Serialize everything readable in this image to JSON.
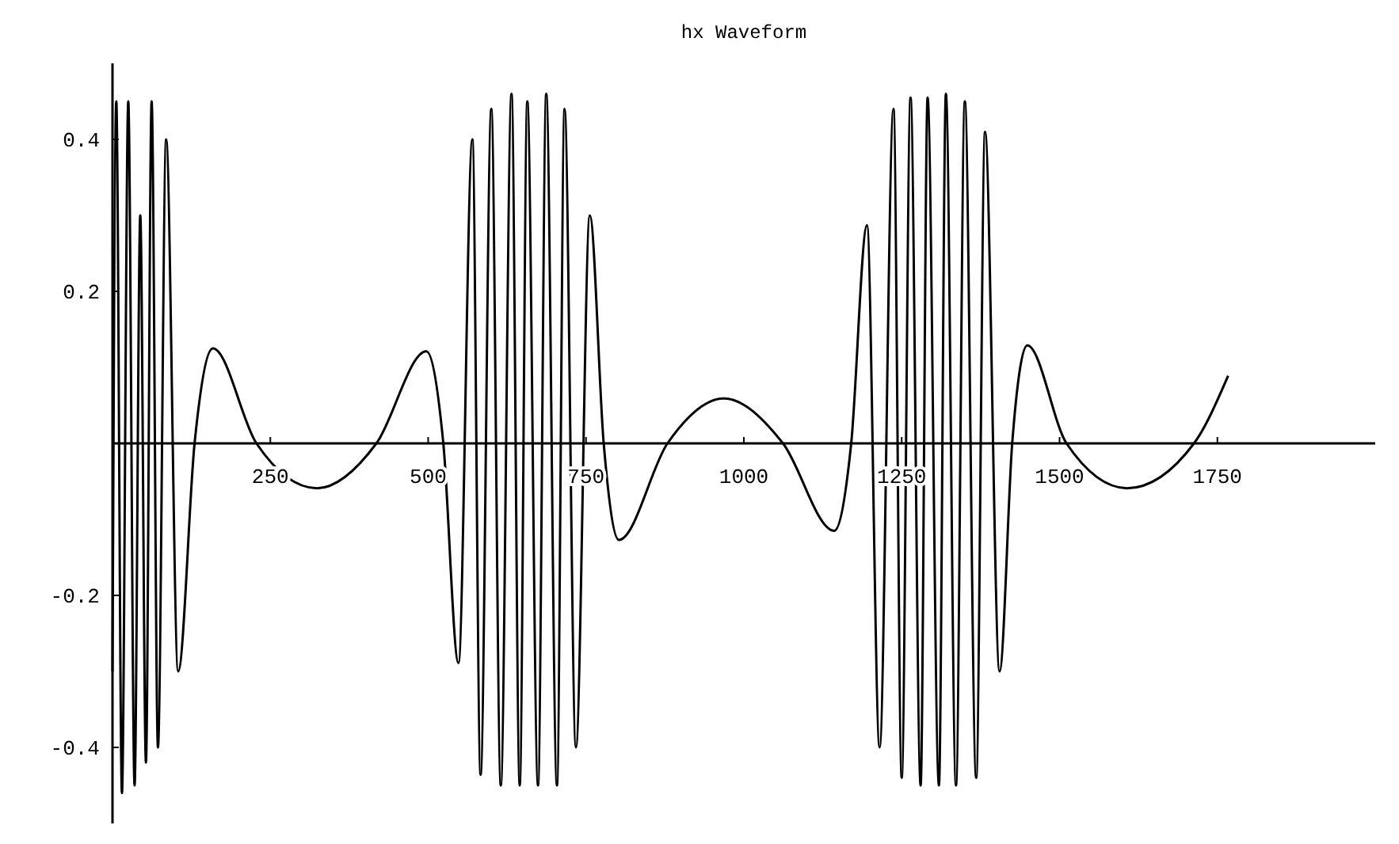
{
  "chart_data": {
    "type": "line",
    "title": "hx Waveform",
    "x": [
      0,
      6,
      15,
      25,
      35,
      44,
      53,
      62,
      72,
      85,
      104,
      130,
      159,
      228,
      324,
      418,
      497,
      524,
      548,
      570,
      583,
      600,
      615,
      632,
      645,
      657,
      674,
      687,
      704,
      716,
      734,
      756,
      778,
      802,
      879,
      968,
      1062,
      1143,
      1170,
      1195,
      1215,
      1237,
      1250,
      1264,
      1280,
      1291,
      1309,
      1320,
      1336,
      1350,
      1368,
      1382,
      1405,
      1425,
      1449,
      1511,
      1607,
      1713,
      1767
    ],
    "series": [
      {
        "color": "#000000",
        "values": [
          -0.3,
          0.45,
          -0.46,
          0.45,
          -0.45,
          0.3,
          -0.42,
          0.45,
          -0.4,
          0.4,
          -0.3,
          0,
          0.125,
          0,
          -0.059,
          0,
          0.121,
          0,
          -0.289,
          0.4,
          -0.436,
          0.44,
          -0.45,
          0.46,
          -0.45,
          0.45,
          -0.45,
          0.46,
          -0.45,
          0.44,
          -0.4,
          0.3,
          0,
          -0.127,
          0,
          0.059,
          0,
          -0.115,
          0,
          0.287,
          -0.4,
          0.44,
          -0.44,
          0.455,
          -0.45,
          0.455,
          -0.45,
          0.46,
          -0.45,
          0.45,
          -0.44,
          0.41,
          -0.3,
          0,
          0.129,
          0,
          -0.059,
          0,
          0.089
        ]
      }
    ],
    "xlim": [
      0,
      2000
    ],
    "ylim": [
      -0.5,
      0.5
    ],
    "xticks": [
      250,
      500,
      750,
      1000,
      1250,
      1500,
      1750
    ],
    "yticks": [
      -0.4,
      -0.2,
      0.2,
      0.4
    ],
    "marker": "none",
    "line_style": "solid"
  }
}
